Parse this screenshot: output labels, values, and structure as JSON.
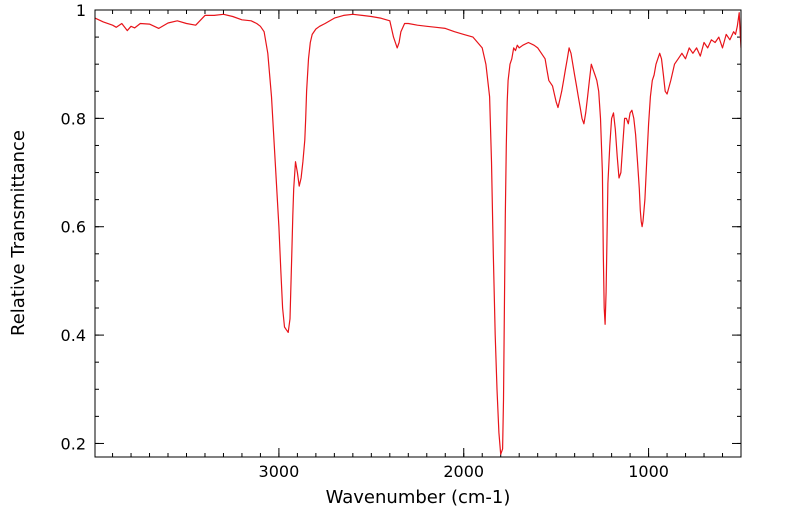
{
  "chart_data": {
    "type": "line",
    "title": "",
    "xlabel": "Wavenumber (cm-1)",
    "ylabel": "Relative Transmittance",
    "xlim": [
      3995,
      500
    ],
    "ylim": [
      0.175,
      1.0
    ],
    "x_reversed": true,
    "grid": false,
    "legend": "none",
    "x_ticks": [
      3000,
      2000,
      1000
    ],
    "x_tick_labels": [
      "3000",
      "2000",
      "1000"
    ],
    "x_minor_step": 100,
    "y_ticks": [
      0.2,
      0.4,
      0.6,
      0.8,
      1.0
    ],
    "y_tick_labels": [
      "0.2",
      "0.4",
      "0.6",
      "0.8",
      "1"
    ],
    "y_minor_step": 0.05,
    "series": [
      {
        "color": "#e8141a",
        "x": [
          3995,
          3950,
          3900,
          3880,
          3850,
          3820,
          3800,
          3780,
          3750,
          3700,
          3650,
          3600,
          3550,
          3500,
          3450,
          3400,
          3350,
          3300,
          3250,
          3200,
          3150,
          3120,
          3100,
          3080,
          3060,
          3040,
          3020,
          3000,
          2990,
          2980,
          2970,
          2960,
          2950,
          2940,
          2930,
          2925,
          2920,
          2910,
          2900,
          2890,
          2880,
          2870,
          2860,
          2855,
          2850,
          2840,
          2830,
          2820,
          2800,
          2780,
          2750,
          2700,
          2650,
          2600,
          2550,
          2500,
          2450,
          2400,
          2380,
          2360,
          2350,
          2340,
          2320,
          2300,
          2250,
          2200,
          2150,
          2100,
          2050,
          2000,
          1950,
          1900,
          1880,
          1860,
          1850,
          1840,
          1830,
          1820,
          1810,
          1800,
          1790,
          1785,
          1780,
          1775,
          1770,
          1765,
          1760,
          1750,
          1740,
          1730,
          1720,
          1710,
          1700,
          1680,
          1650,
          1620,
          1600,
          1580,
          1560,
          1550,
          1540,
          1520,
          1500,
          1490,
          1480,
          1470,
          1460,
          1450,
          1440,
          1430,
          1420,
          1410,
          1400,
          1390,
          1380,
          1370,
          1360,
          1350,
          1340,
          1330,
          1320,
          1310,
          1300,
          1290,
          1280,
          1270,
          1260,
          1250,
          1245,
          1240,
          1235,
          1230,
          1225,
          1220,
          1210,
          1200,
          1190,
          1180,
          1170,
          1160,
          1150,
          1140,
          1130,
          1120,
          1110,
          1100,
          1090,
          1080,
          1070,
          1060,
          1050,
          1045,
          1040,
          1035,
          1030,
          1020,
          1010,
          1000,
          990,
          980,
          970,
          960,
          950,
          940,
          930,
          920,
          910,
          900,
          880,
          860,
          840,
          820,
          800,
          780,
          760,
          740,
          720,
          700,
          680,
          660,
          640,
          620,
          600,
          580,
          560,
          540,
          530,
          520,
          510,
          505,
          500
        ],
        "y": [
          0.985,
          0.978,
          0.972,
          0.968,
          0.975,
          0.962,
          0.97,
          0.967,
          0.975,
          0.974,
          0.966,
          0.976,
          0.98,
          0.975,
          0.972,
          0.99,
          0.99,
          0.992,
          0.988,
          0.982,
          0.98,
          0.975,
          0.97,
          0.96,
          0.92,
          0.84,
          0.72,
          0.6,
          0.52,
          0.45,
          0.415,
          0.41,
          0.405,
          0.43,
          0.55,
          0.62,
          0.67,
          0.72,
          0.7,
          0.675,
          0.69,
          0.72,
          0.76,
          0.8,
          0.85,
          0.91,
          0.94,
          0.955,
          0.965,
          0.97,
          0.975,
          0.985,
          0.99,
          0.992,
          0.99,
          0.988,
          0.985,
          0.98,
          0.95,
          0.93,
          0.94,
          0.96,
          0.975,
          0.975,
          0.972,
          0.97,
          0.968,
          0.966,
          0.96,
          0.955,
          0.95,
          0.93,
          0.9,
          0.84,
          0.72,
          0.55,
          0.4,
          0.3,
          0.22,
          0.18,
          0.19,
          0.28,
          0.45,
          0.62,
          0.75,
          0.83,
          0.87,
          0.9,
          0.91,
          0.93,
          0.925,
          0.935,
          0.93,
          0.935,
          0.94,
          0.935,
          0.93,
          0.92,
          0.91,
          0.89,
          0.87,
          0.86,
          0.83,
          0.82,
          0.835,
          0.85,
          0.87,
          0.89,
          0.91,
          0.93,
          0.92,
          0.9,
          0.88,
          0.86,
          0.84,
          0.82,
          0.8,
          0.79,
          0.81,
          0.84,
          0.87,
          0.9,
          0.89,
          0.88,
          0.87,
          0.85,
          0.8,
          0.7,
          0.55,
          0.45,
          0.42,
          0.48,
          0.58,
          0.68,
          0.75,
          0.8,
          0.81,
          0.78,
          0.73,
          0.69,
          0.7,
          0.75,
          0.8,
          0.8,
          0.79,
          0.81,
          0.815,
          0.8,
          0.77,
          0.72,
          0.67,
          0.63,
          0.61,
          0.6,
          0.61,
          0.65,
          0.72,
          0.79,
          0.84,
          0.87,
          0.88,
          0.9,
          0.91,
          0.92,
          0.91,
          0.88,
          0.85,
          0.845,
          0.87,
          0.9,
          0.91,
          0.92,
          0.91,
          0.93,
          0.92,
          0.93,
          0.915,
          0.94,
          0.93,
          0.945,
          0.94,
          0.95,
          0.93,
          0.955,
          0.945,
          0.96,
          0.955,
          0.97,
          0.995,
          0.96,
          0.93
        ]
      }
    ]
  }
}
